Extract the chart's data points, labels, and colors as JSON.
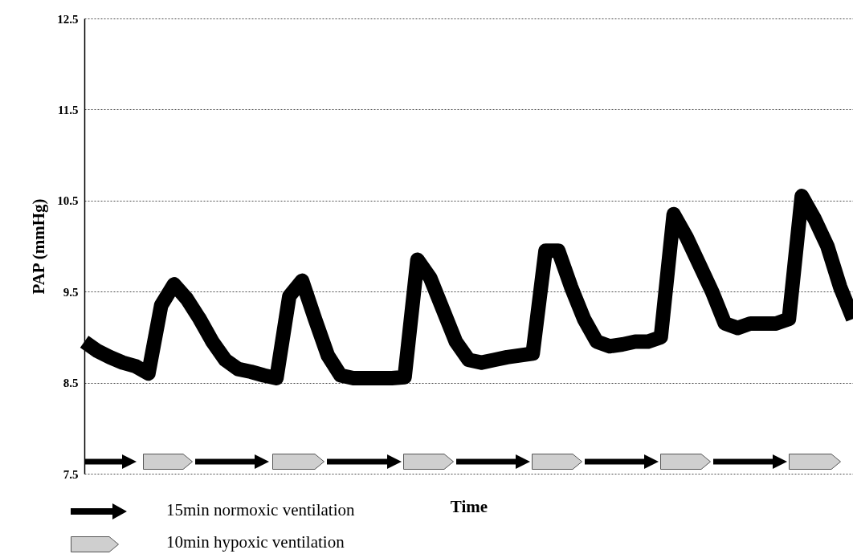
{
  "chart_data": {
    "type": "line",
    "xlabel": "Time",
    "ylabel": "PAP (mmHg)",
    "categories": [
      null,
      null,
      null,
      null,
      null,
      null,
      null,
      null,
      null,
      null,
      null,
      null,
      null,
      null,
      null,
      null,
      null,
      null,
      null,
      null,
      null,
      null,
      null,
      null,
      null,
      null,
      null,
      null,
      null,
      null,
      null,
      null,
      null,
      null,
      null,
      null,
      null,
      null,
      null,
      null,
      null,
      null,
      null,
      null,
      null,
      null,
      null,
      null,
      null,
      null,
      null,
      null,
      null,
      null,
      null,
      null,
      null,
      null,
      null,
      null,
      null
    ],
    "series": [
      {
        "color": "#000000",
        "values": [
          8.95,
          8.85,
          8.78,
          8.72,
          8.68,
          8.6,
          9.35,
          9.58,
          9.42,
          9.2,
          8.95,
          8.75,
          8.65,
          8.62,
          8.58,
          8.55,
          9.45,
          9.62,
          9.2,
          8.8,
          8.58,
          8.55,
          8.55,
          8.55,
          8.55,
          8.56,
          9.85,
          9.65,
          9.3,
          8.95,
          8.75,
          8.72,
          8.75,
          8.78,
          8.8,
          8.82,
          9.95,
          9.95,
          9.55,
          9.2,
          8.95,
          8.9,
          8.92,
          8.95,
          8.95,
          9.0,
          10.35,
          10.1,
          9.8,
          9.5,
          9.15,
          9.1,
          9.15,
          9.15,
          9.15,
          9.2,
          10.55,
          10.3,
          10.0,
          9.55,
          9.2
        ]
      }
    ],
    "ylim": [
      7.5,
      12.5
    ],
    "yticks": [
      7.5,
      8.5,
      9.5,
      10.5,
      11.5,
      12.5
    ],
    "grid": "y",
    "marker": "none",
    "line_style": "solid",
    "annotations": [
      "15min normoxic ventilation",
      "10min hypoxic ventilation"
    ]
  }
}
